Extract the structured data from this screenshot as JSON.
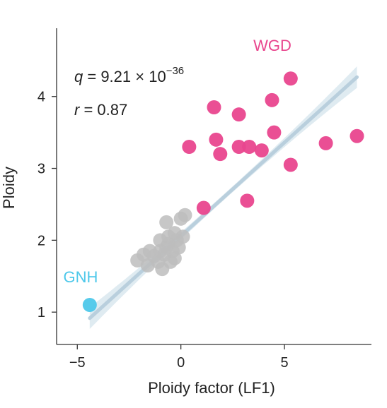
{
  "chart_data": {
    "type": "scatter",
    "xlabel": "Ploidy factor (LF1)",
    "ylabel": "Ploidy",
    "xlim": [
      -6,
      9.2
    ],
    "ylim": [
      0.55,
      4.95
    ],
    "xticks": [
      -5,
      0,
      5
    ],
    "yticks": [
      1,
      2,
      3,
      4
    ],
    "grid": false,
    "annotations": {
      "q_prefix": "q",
      "q_text": " = 9.21 × 10",
      "q_exponent": "−36",
      "r_prefix": "r",
      "r_text": " = 0.87"
    },
    "groups": [
      {
        "label": "WGD",
        "color": "#e9468e",
        "points": [
          [
            5.3,
            4.25
          ],
          [
            4.4,
            3.95
          ],
          [
            1.6,
            3.85
          ],
          [
            2.8,
            3.75
          ],
          [
            4.5,
            3.5
          ],
          [
            1.7,
            3.4
          ],
          [
            0.4,
            3.3
          ],
          [
            1.9,
            3.2
          ],
          [
            2.8,
            3.3
          ],
          [
            3.3,
            3.3
          ],
          [
            3.9,
            3.25
          ],
          [
            7.0,
            3.35
          ],
          [
            8.5,
            3.45
          ],
          [
            5.3,
            3.05
          ],
          [
            3.2,
            2.55
          ],
          [
            1.1,
            2.45
          ]
        ]
      },
      {
        "label": "",
        "color": "#bdbdbd",
        "points": [
          [
            0.2,
            2.35
          ],
          [
            -0.7,
            2.25
          ],
          [
            0.0,
            2.3
          ],
          [
            -0.3,
            2.1
          ],
          [
            -1.0,
            2.0
          ],
          [
            -0.6,
            1.95
          ],
          [
            -0.2,
            2.0
          ],
          [
            0.1,
            2.05
          ],
          [
            -1.5,
            1.85
          ],
          [
            -0.8,
            1.8
          ],
          [
            -0.4,
            1.85
          ],
          [
            -2.1,
            1.72
          ],
          [
            -1.6,
            1.65
          ],
          [
            -1.1,
            1.7
          ],
          [
            -0.5,
            1.7
          ],
          [
            -0.9,
            1.6
          ],
          [
            -1.3,
            1.78
          ],
          [
            -0.7,
            1.9
          ],
          [
            -0.1,
            1.9
          ],
          [
            -1.8,
            1.8
          ],
          [
            -0.3,
            1.75
          ],
          [
            -1.0,
            1.85
          ],
          [
            -0.6,
            2.05
          ]
        ]
      },
      {
        "label": "GNH",
        "color": "#4ec8ea",
        "points": [
          [
            -4.4,
            1.1
          ]
        ]
      }
    ],
    "regression": {
      "color": "#b9cfdd",
      "band_color": "#c9dde8",
      "x_range": [
        -4.4,
        8.5
      ],
      "slope": 0.26,
      "intercept": 2.06,
      "ci_halfwidth_at_ends": 0.15,
      "ci_halfwidth_at_center": 0.04
    }
  }
}
